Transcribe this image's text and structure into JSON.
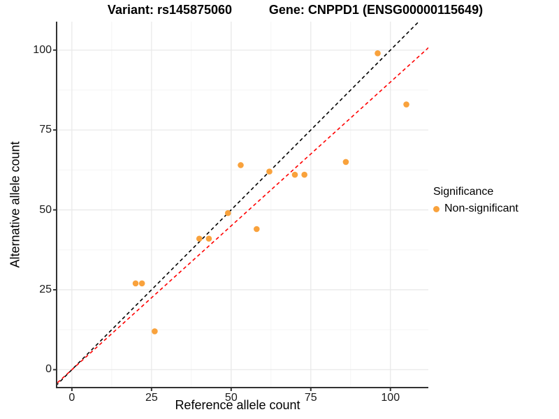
{
  "chart_data": {
    "type": "scatter",
    "titles": {
      "left": "Variant: rs145875060",
      "right": "Gene: CNPPD1 (ENSG00000115649)"
    },
    "xlabel": "Reference allele count",
    "ylabel": "Alternative allele count",
    "x_ticks": [
      0,
      25,
      50,
      75,
      100
    ],
    "y_ticks": [
      0,
      25,
      50,
      75,
      100
    ],
    "x_minor": [
      12.5,
      37.5,
      62.5,
      87.5
    ],
    "y_minor": [
      12.5,
      37.5,
      62.5,
      87.5
    ],
    "xlim": [
      -4.8,
      111.9
    ],
    "ylim": [
      -5.6,
      108.9
    ],
    "grid": true,
    "legend_position": "right",
    "legend": {
      "title": "Significance",
      "entries": [
        {
          "label": "Non-significant",
          "color": "#F9A23C"
        }
      ]
    },
    "series": [
      {
        "name": "Non-significant",
        "color": "#F9A23C",
        "points": [
          [
            20,
            27
          ],
          [
            22,
            27
          ],
          [
            26,
            12
          ],
          [
            40,
            41
          ],
          [
            43,
            41
          ],
          [
            49,
            49
          ],
          [
            53,
            64
          ],
          [
            58,
            44
          ],
          [
            62,
            62
          ],
          [
            70,
            61
          ],
          [
            73,
            61
          ],
          [
            86,
            65
          ],
          [
            96,
            99
          ],
          [
            105,
            83
          ]
        ]
      }
    ],
    "lines": [
      {
        "name": "identity",
        "slope": 1.0,
        "intercept": 0,
        "color": "#000000",
        "style": "dashed"
      },
      {
        "name": "fit",
        "slope": 0.9,
        "intercept": 0,
        "color": "#FF0000",
        "style": "dashed"
      }
    ]
  },
  "colors": {
    "background": "#FFFFFF",
    "grid_major": "#E9E9E9",
    "grid_minor": "#F5F5F5",
    "axis": "#333333",
    "tick_text": "#1A1A1A",
    "point": "#F9A23C",
    "identity_line": "#000000",
    "fit_line": "#FF0000"
  }
}
